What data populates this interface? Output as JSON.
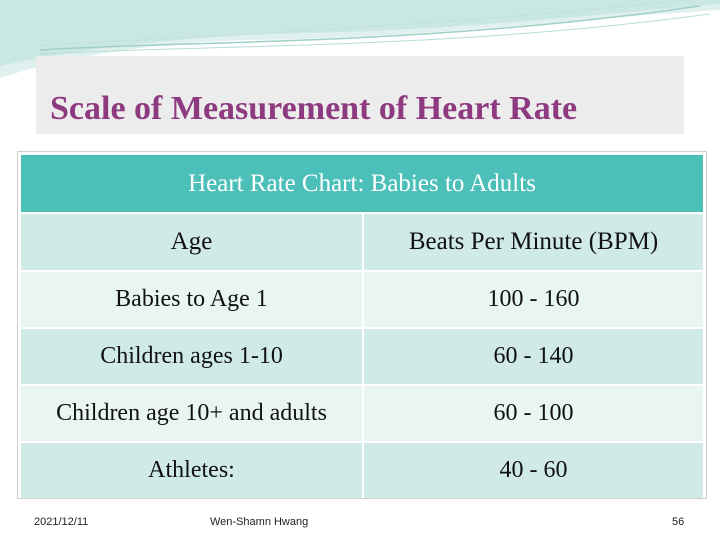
{
  "title": "Scale of Measurement of Heart Rate",
  "table": {
    "caption": "Heart Rate Chart: Babies to Adults",
    "headers": [
      "Age",
      "Beats Per Minute (BPM)"
    ],
    "rows": [
      [
        "Babies to Age 1",
        "100 - 160"
      ],
      [
        "Children ages 1-10",
        "60 - 140"
      ],
      [
        "Children age 10+ and adults",
        "60 - 100"
      ],
      [
        "Athletes:",
        "40 - 60"
      ]
    ]
  },
  "footer": {
    "date": "2021/12/11",
    "author": "Wen-Shamn Hwang",
    "page": "56"
  },
  "colors": {
    "title": "#8e3a80",
    "header_band": "#4cbfb9",
    "row_dark": "#cfeae7",
    "row_light": "#e8f5f3"
  }
}
